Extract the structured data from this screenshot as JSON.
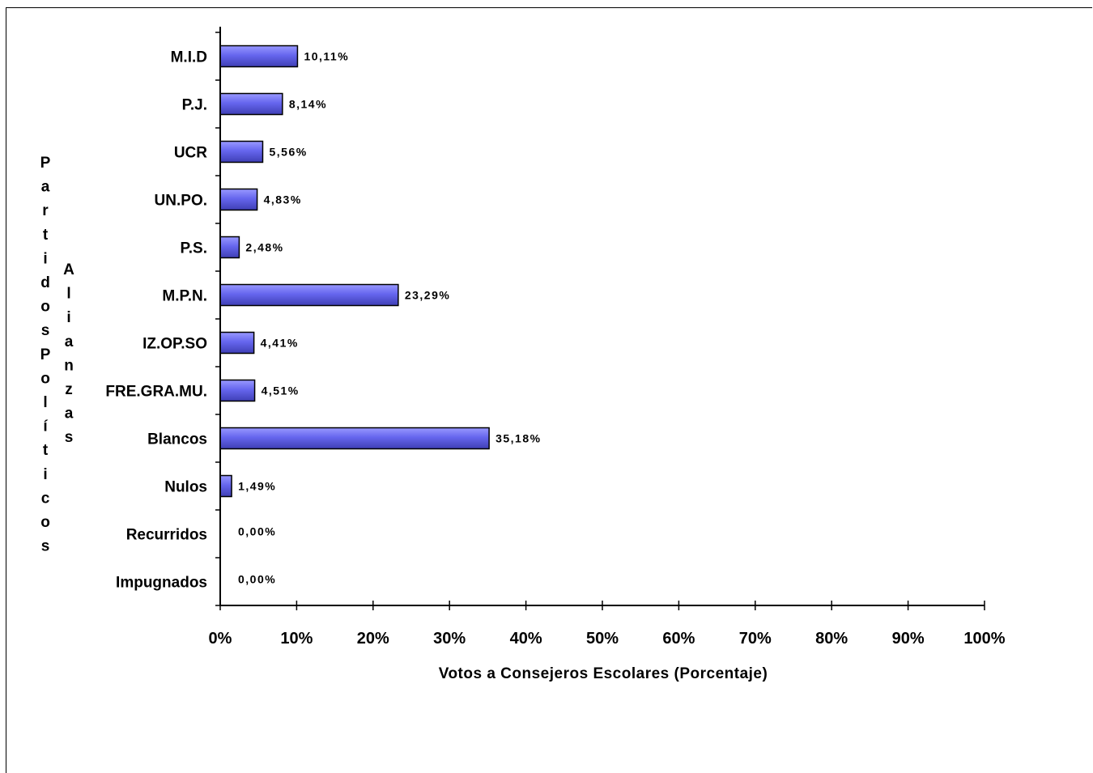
{
  "chart_data": {
    "type": "bar",
    "orientation": "horizontal",
    "categories": [
      "M.I.D",
      "P.J.",
      "UCR",
      "UN.PO.",
      "P.S.",
      "M.P.N.",
      "IZ.OP.SO",
      "FRE.GRA.MU.",
      "Blancos",
      "Nulos",
      "Recurridos",
      "Impugnados"
    ],
    "values": [
      10.11,
      8.14,
      5.56,
      4.83,
      2.48,
      23.29,
      4.41,
      4.51,
      35.18,
      1.49,
      0.0,
      0.0
    ],
    "data_labels": [
      "10,11%",
      "8,14%",
      "5,56%",
      "4,83%",
      "2,48%",
      "23,29%",
      "4,41%",
      "4,51%",
      "35,18%",
      "1,49%",
      "0,00%",
      "0,00%"
    ],
    "xlim": [
      0,
      100
    ],
    "xticks": [
      "0%",
      "10%",
      "20%",
      "30%",
      "40%",
      "50%",
      "60%",
      "70%",
      "80%",
      "90%",
      "100%"
    ],
    "xlabel": "Votos a Consejeros Escolares (Porcentaje)",
    "ylabel_lines": [
      "Partidos Políticos",
      "Alianzas"
    ],
    "grid": false,
    "legend": "none",
    "bar_color": "#6666ee",
    "bar_gradient_light": "#9999ff",
    "bar_gradient_dark": "#3f3fb5",
    "edge_color": "#000000"
  }
}
